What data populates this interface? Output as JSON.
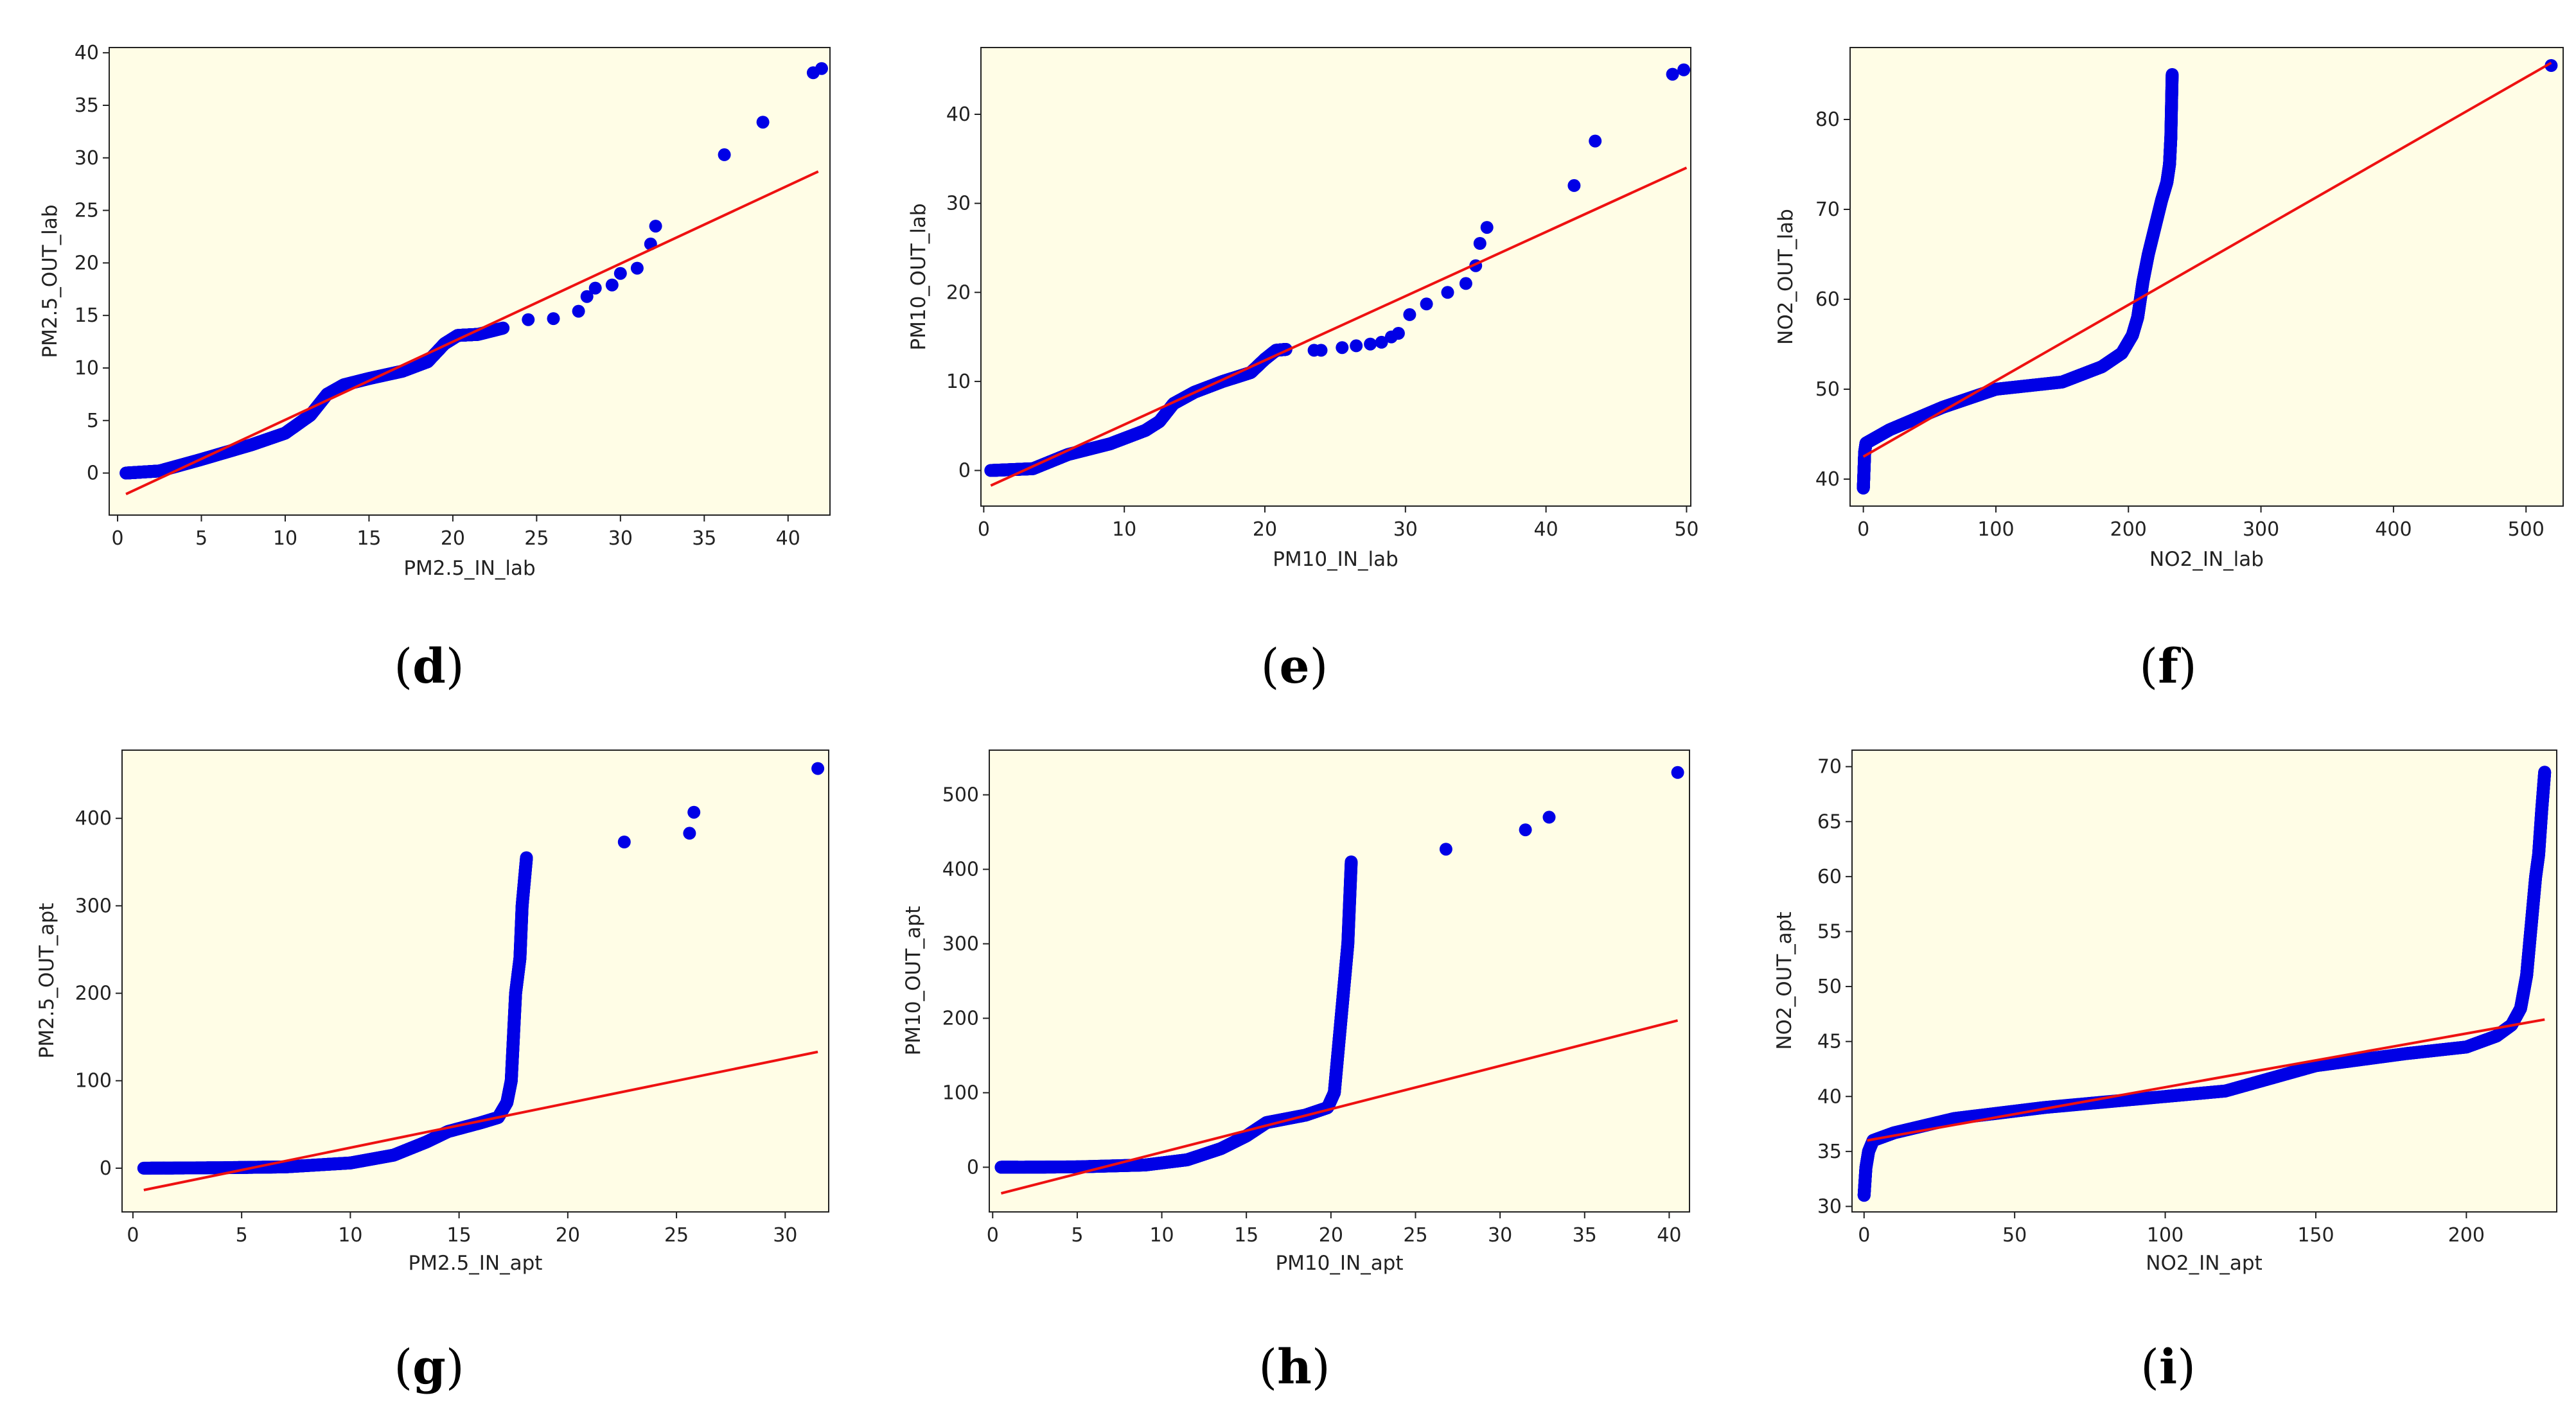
{
  "figure": {
    "background_color": "#ffffff",
    "plot_background_color": "#fffde6",
    "point_color": "#0000e6",
    "line_color": "#ee1111"
  },
  "chart_data": [
    {
      "id": "d",
      "panel_label": "d",
      "type": "scatter",
      "title": "",
      "xlabel": "PM2.5_IN_lab",
      "ylabel": "PM2.5_OUT_lab",
      "xlim": [
        -0.5,
        42.5
      ],
      "ylim": [
        -4,
        40.5
      ],
      "xticks": [
        0,
        5,
        10,
        15,
        20,
        25,
        30,
        35,
        40
      ],
      "yticks": [
        0,
        5,
        10,
        15,
        20,
        25,
        30,
        35,
        40
      ],
      "grid": false,
      "legend": "none",
      "series": [
        {
          "name": "quantiles",
          "kind": "points",
          "profile": [
            [
              0.5,
              0
            ],
            [
              2.5,
              0.2
            ],
            [
              5,
              1.3
            ],
            [
              8,
              2.7
            ],
            [
              10,
              3.8
            ],
            [
              11.5,
              5.5
            ],
            [
              12.5,
              7.5
            ],
            [
              13.5,
              8.4
            ],
            [
              15,
              9.0
            ],
            [
              17,
              9.7
            ],
            [
              18.5,
              10.6
            ],
            [
              19.5,
              12.3
            ],
            [
              20.3,
              13.1
            ],
            [
              21.5,
              13.2
            ],
            [
              23,
              13.8
            ]
          ]
        },
        {
          "name": "outliers",
          "kind": "points",
          "x": [
            24.5,
            26,
            27.5,
            28,
            28.5,
            29.5,
            30,
            31,
            31.8,
            32.1,
            36.2,
            38.5,
            41.5,
            42
          ],
          "y": [
            14.6,
            14.7,
            15.4,
            16.8,
            17.6,
            17.9,
            19,
            19.5,
            21.8,
            23.5,
            30.3,
            33.4,
            38.1,
            38.5
          ]
        },
        {
          "name": "fit",
          "kind": "line",
          "x": [
            0.5,
            41.8
          ],
          "y": [
            -2.0,
            28.7
          ]
        }
      ]
    },
    {
      "id": "e",
      "panel_label": "e",
      "type": "scatter",
      "title": "",
      "xlabel": "PM10_IN_lab",
      "ylabel": "PM10_OUT_lab",
      "xlim": [
        -0.2,
        50.3
      ],
      "ylim": [
        -4,
        47.5
      ],
      "xticks": [
        0,
        10,
        20,
        30,
        40,
        50
      ],
      "yticks": [
        0,
        10,
        20,
        30,
        40
      ],
      "grid": false,
      "legend": "none",
      "series": [
        {
          "name": "quantiles",
          "kind": "points",
          "profile": [
            [
              0.5,
              0
            ],
            [
              3.5,
              0.2
            ],
            [
              6,
              1.8
            ],
            [
              9,
              3.0
            ],
            [
              11.5,
              4.5
            ],
            [
              12.5,
              5.5
            ],
            [
              13.5,
              7.5
            ],
            [
              15,
              8.8
            ],
            [
              17,
              10
            ],
            [
              19,
              11
            ],
            [
              20,
              12.5
            ],
            [
              20.8,
              13.5
            ],
            [
              21.5,
              13.6
            ]
          ]
        },
        {
          "name": "outliers",
          "kind": "points",
          "x": [
            23.5,
            24,
            25.5,
            26.5,
            27.5,
            28.3,
            29,
            29.5,
            30.3,
            31.5,
            33,
            34.3,
            35,
            35.3,
            35.8,
            42,
            43.5,
            49,
            49.8
          ],
          "y": [
            13.5,
            13.5,
            13.8,
            14,
            14.2,
            14.4,
            15,
            15.4,
            17.5,
            18.7,
            20,
            21,
            23,
            25.5,
            27.3,
            32,
            37,
            44.5,
            45
          ]
        },
        {
          "name": "fit",
          "kind": "line",
          "x": [
            0.5,
            50
          ],
          "y": [
            -1.7,
            34.0
          ]
        }
      ]
    },
    {
      "id": "f",
      "panel_label": "f",
      "type": "scatter",
      "title": "",
      "xlabel": "NO2_IN_lab",
      "ylabel": "NO2_OUT_lab",
      "xlim": [
        -10,
        528
      ],
      "ylim": [
        37,
        88
      ],
      "xticks": [
        0,
        100,
        200,
        300,
        400,
        500
      ],
      "yticks": [
        40,
        50,
        60,
        70,
        80
      ],
      "grid": false,
      "legend": "none",
      "series": [
        {
          "name": "quantiles",
          "kind": "points",
          "profile": [
            [
              0,
              39
            ],
            [
              0.5,
              41
            ],
            [
              1,
              43
            ],
            [
              2,
              44
            ],
            [
              20,
              45.5
            ],
            [
              60,
              48
            ],
            [
              100,
              50
            ],
            [
              150,
              50.8
            ],
            [
              180,
              52.5
            ],
            [
              195,
              54
            ],
            [
              203,
              56
            ],
            [
              207,
              58
            ],
            [
              211,
              62
            ],
            [
              215,
              65
            ],
            [
              220,
              68
            ],
            [
              225,
              71
            ],
            [
              229,
              73
            ],
            [
              231,
              75
            ],
            [
              232,
              78
            ],
            [
              233,
              85
            ]
          ]
        },
        {
          "name": "outliers",
          "kind": "points",
          "x": [
            519
          ],
          "y": [
            86
          ]
        },
        {
          "name": "fit",
          "kind": "line",
          "x": [
            0,
            519
          ],
          "y": [
            42.5,
            86.3
          ]
        }
      ]
    },
    {
      "id": "g",
      "panel_label": "g",
      "type": "scatter",
      "title": "",
      "xlabel": "PM2.5_IN_apt",
      "ylabel": "PM2.5_OUT_apt",
      "xlim": [
        -0.5,
        32
      ],
      "ylim": [
        -50,
        478
      ],
      "xticks": [
        0,
        5,
        10,
        15,
        20,
        25,
        30
      ],
      "yticks": [
        0,
        100,
        200,
        300,
        400
      ],
      "grid": false,
      "legend": "none",
      "series": [
        {
          "name": "quantiles",
          "kind": "points",
          "profile": [
            [
              0.5,
              0
            ],
            [
              4,
              0.5
            ],
            [
              7,
              1.5
            ],
            [
              10,
              6
            ],
            [
              12,
              15
            ],
            [
              13.5,
              30
            ],
            [
              14.5,
              42
            ],
            [
              16,
              52
            ],
            [
              16.8,
              58
            ],
            [
              17.2,
              75
            ],
            [
              17.4,
              100
            ],
            [
              17.5,
              150
            ],
            [
              17.6,
              200
            ],
            [
              17.8,
              240
            ],
            [
              17.9,
              300
            ],
            [
              18.1,
              355
            ]
          ]
        },
        {
          "name": "outliers",
          "kind": "points",
          "x": [
            22.6,
            25.6,
            25.8,
            31.5
          ],
          "y": [
            373,
            383,
            407,
            457
          ]
        },
        {
          "name": "fit",
          "kind": "line",
          "x": [
            0.5,
            31.5
          ],
          "y": [
            -25,
            133
          ]
        }
      ]
    },
    {
      "id": "h",
      "panel_label": "h",
      "type": "scatter",
      "title": "",
      "xlabel": "PM10_IN_apt",
      "ylabel": "PM10_OUT_apt",
      "xlim": [
        -0.2,
        41.2
      ],
      "ylim": [
        -60,
        560
      ],
      "xticks": [
        0,
        5,
        10,
        15,
        20,
        25,
        30,
        35,
        40
      ],
      "yticks": [
        0,
        100,
        200,
        300,
        400,
        500
      ],
      "grid": false,
      "legend": "none",
      "series": [
        {
          "name": "quantiles",
          "kind": "points",
          "profile": [
            [
              0.5,
              0
            ],
            [
              1.5,
              0
            ],
            [
              5,
              0.5
            ],
            [
              9,
              3
            ],
            [
              11.5,
              10
            ],
            [
              13.5,
              25
            ],
            [
              15,
              42
            ],
            [
              16.2,
              60
            ],
            [
              18.5,
              70
            ],
            [
              19.8,
              80
            ],
            [
              20.2,
              100
            ],
            [
              20.4,
              150
            ],
            [
              20.6,
              200
            ],
            [
              20.8,
              250
            ],
            [
              21,
              300
            ],
            [
              21.2,
              410
            ]
          ]
        },
        {
          "name": "outliers",
          "kind": "points",
          "x": [
            26.8,
            31.5,
            32.9,
            40.5
          ],
          "y": [
            427,
            453,
            470,
            530
          ]
        },
        {
          "name": "fit",
          "kind": "line",
          "x": [
            0.5,
            40.5
          ],
          "y": [
            -35,
            197
          ]
        }
      ]
    },
    {
      "id": "i",
      "panel_label": "i",
      "type": "scatter",
      "title": "",
      "xlabel": "NO2_IN_apt",
      "ylabel": "NO2_OUT_apt",
      "xlim": [
        -4,
        230
      ],
      "ylim": [
        29.5,
        71.5
      ],
      "xticks": [
        0,
        50,
        100,
        150,
        200
      ],
      "yticks": [
        30,
        35,
        40,
        45,
        50,
        55,
        60,
        65,
        70
      ],
      "grid": false,
      "legend": "none",
      "series": [
        {
          "name": "quantiles",
          "kind": "points",
          "profile": [
            [
              0,
              31
            ],
            [
              0.6,
              33.5
            ],
            [
              1.5,
              35
            ],
            [
              3,
              36
            ],
            [
              10,
              36.7
            ],
            [
              30,
              38
            ],
            [
              60,
              39
            ],
            [
              100,
              40
            ],
            [
              120,
              40.5
            ],
            [
              150,
              42.8
            ],
            [
              180,
              43.9
            ],
            [
              200,
              44.5
            ],
            [
              210,
              45.5
            ],
            [
              215,
              46.5
            ],
            [
              218,
              48
            ],
            [
              220,
              51
            ],
            [
              221,
              54
            ],
            [
              222,
              57
            ],
            [
              223,
              60
            ],
            [
              224,
              62
            ],
            [
              225,
              66
            ],
            [
              226,
              69.5
            ]
          ]
        },
        {
          "name": "fit",
          "kind": "line",
          "x": [
            1,
            226
          ],
          "y": [
            36.0,
            47.0
          ]
        }
      ]
    }
  ]
}
